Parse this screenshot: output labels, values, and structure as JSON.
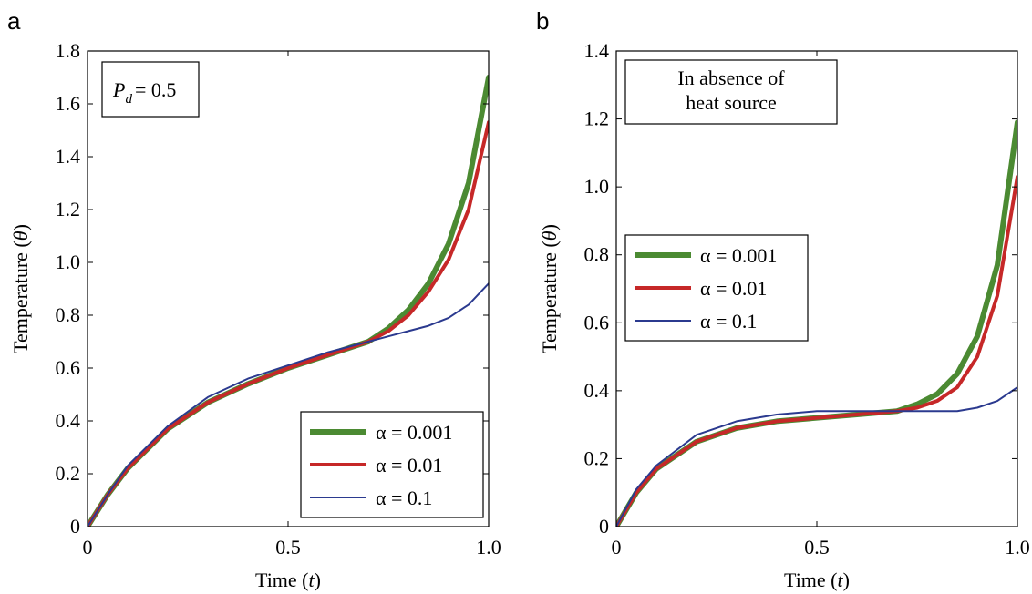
{
  "chart_data": [
    {
      "type": "line",
      "panel_label": "a",
      "xlabel_text": "Time (",
      "xlabel_var": "t",
      "xlabel_close": ")",
      "ylabel_text": "Temperature (",
      "ylabel_var": "θ",
      "ylabel_close": ")",
      "xlim": [
        0,
        1
      ],
      "ylim": [
        0,
        1.8
      ],
      "x_ticks": [
        0,
        0.5,
        1.0
      ],
      "x_tick_labels": [
        "0",
        "0.5",
        "1.0"
      ],
      "y_ticks": [
        0,
        0.2,
        0.4,
        0.6,
        0.8,
        1.0,
        1.2,
        1.4,
        1.6,
        1.8
      ],
      "y_tick_labels": [
        "0",
        "0.2",
        "0.4",
        "0.6",
        "0.8",
        "1.0",
        "1.2",
        "1.4",
        "1.6",
        "1.8"
      ],
      "grid": false,
      "legend_position": "bottom-right",
      "annotation": {
        "symbol": "P",
        "subscript": "d",
        "value": "= 0.5",
        "position": "top-left"
      },
      "x": [
        0,
        0.05,
        0.1,
        0.2,
        0.3,
        0.4,
        0.5,
        0.6,
        0.7,
        0.75,
        0.8,
        0.85,
        0.9,
        0.95,
        1.0
      ],
      "series": [
        {
          "name": "α = 0.001",
          "color": "#4b8a32",
          "width": 6,
          "values": [
            0,
            0.12,
            0.22,
            0.37,
            0.47,
            0.54,
            0.6,
            0.65,
            0.7,
            0.75,
            0.82,
            0.92,
            1.07,
            1.3,
            1.7
          ]
        },
        {
          "name": "α = 0.01",
          "color": "#c62828",
          "width": 4,
          "values": [
            0,
            0.12,
            0.22,
            0.37,
            0.47,
            0.54,
            0.6,
            0.65,
            0.7,
            0.74,
            0.8,
            0.89,
            1.01,
            1.2,
            1.53
          ]
        },
        {
          "name": "α = 0.1",
          "color": "#2b3a8f",
          "width": 2,
          "values": [
            0,
            0.12,
            0.23,
            0.38,
            0.49,
            0.56,
            0.61,
            0.66,
            0.7,
            0.72,
            0.74,
            0.76,
            0.79,
            0.84,
            0.92
          ]
        }
      ]
    },
    {
      "type": "line",
      "panel_label": "b",
      "xlabel_text": "Time (",
      "xlabel_var": "t",
      "xlabel_close": ")",
      "ylabel_text": "Temperature (",
      "ylabel_var": "θ",
      "ylabel_close": ")",
      "xlim": [
        0,
        1
      ],
      "ylim": [
        0,
        1.4
      ],
      "x_ticks": [
        0,
        0.5,
        1.0
      ],
      "x_tick_labels": [
        "0",
        "0.5",
        "1.0"
      ],
      "y_ticks": [
        0,
        0.2,
        0.4,
        0.6,
        0.8,
        1.0,
        1.2,
        1.4
      ],
      "y_tick_labels": [
        "0",
        "0.2",
        "0.4",
        "0.6",
        "0.8",
        "1.0",
        "1.2",
        "1.4"
      ],
      "grid": false,
      "legend_position": "center-left",
      "annotation_lines": [
        "In absence of",
        "heat source"
      ],
      "x": [
        0,
        0.05,
        0.1,
        0.2,
        0.3,
        0.4,
        0.5,
        0.6,
        0.7,
        0.75,
        0.8,
        0.85,
        0.9,
        0.95,
        1.0
      ],
      "series": [
        {
          "name": "α = 0.001",
          "color": "#4b8a32",
          "width": 6,
          "values": [
            0,
            0.1,
            0.17,
            0.25,
            0.29,
            0.31,
            0.32,
            0.33,
            0.34,
            0.36,
            0.39,
            0.45,
            0.56,
            0.77,
            1.19
          ]
        },
        {
          "name": "α = 0.01",
          "color": "#c62828",
          "width": 4,
          "values": [
            0,
            0.1,
            0.17,
            0.25,
            0.29,
            0.31,
            0.32,
            0.33,
            0.34,
            0.35,
            0.37,
            0.41,
            0.5,
            0.68,
            1.03
          ]
        },
        {
          "name": "α = 0.1",
          "color": "#2b3a8f",
          "width": 2,
          "values": [
            0,
            0.11,
            0.18,
            0.27,
            0.31,
            0.33,
            0.34,
            0.34,
            0.34,
            0.34,
            0.34,
            0.34,
            0.35,
            0.37,
            0.41
          ]
        }
      ]
    }
  ]
}
